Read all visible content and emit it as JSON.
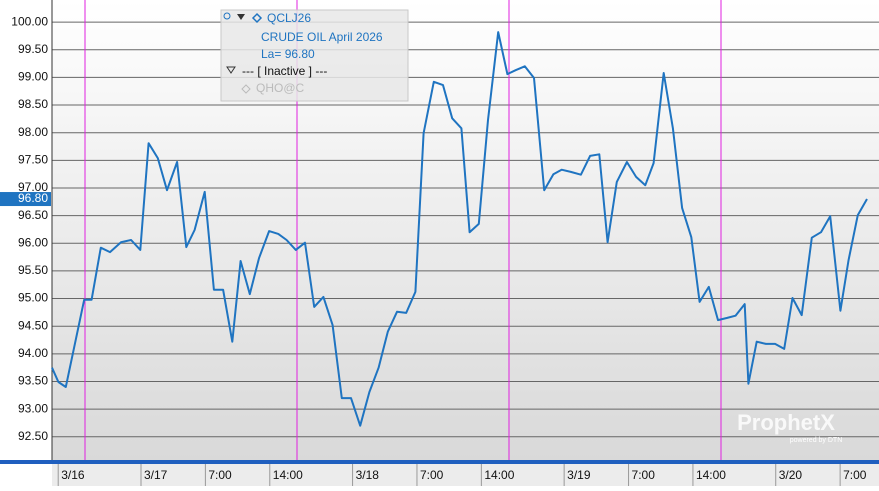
{
  "chart_data": {
    "type": "line",
    "x": [
      0,
      0.7,
      1.5,
      3.5,
      4.3,
      5.3,
      6.3,
      7.5,
      8.6,
      9.6,
      10.5,
      11.5,
      12.5,
      13.6,
      14.6,
      15.5,
      16.6,
      17.6,
      18.6,
      19.6,
      20.5,
      21.5,
      22.5,
      23.6,
      24.6,
      25.5,
      26.5,
      27.5,
      28.5,
      29.5,
      30.5,
      31.5,
      32.5,
      33.5,
      34.5,
      35.5,
      36.5,
      37.5,
      38.5,
      39.5,
      40.4,
      41.5,
      42.5,
      43.5,
      44.5,
      45.4,
      46.4,
      47.4,
      48.5,
      49.5,
      50.4,
      51.4,
      52.4,
      53.5,
      54.5,
      55.4,
      56.4,
      57.5,
      58.5,
      59.5,
      60.4,
      61.4,
      62.5,
      63.5,
      64.5,
      65.4,
      66.5,
      67.5,
      68.5,
      69.5,
      70.4,
      71.4,
      72.4,
      73.4,
      74.3,
      75.3,
      75.7,
      76.6,
      77.6,
      78.6,
      79.6,
      80.5,
      81.5,
      82.6,
      83.6,
      84.6,
      85.7,
      86.6,
      87.6,
      88.6
    ],
    "series": [
      {
        "name": "QCLJ26",
        "color": "#1f74c1",
        "values": [
          93.75,
          93.49,
          93.4,
          94.98,
          94.98,
          95.92,
          95.84,
          96.02,
          96.06,
          95.88,
          97.81,
          97.54,
          96.96,
          97.47,
          95.93,
          96.24,
          96.93,
          95.16,
          95.16,
          94.22,
          95.68,
          95.08,
          95.73,
          96.22,
          96.17,
          96.06,
          95.88,
          96.01,
          94.85,
          95.03,
          94.52,
          93.2,
          93.2,
          92.7,
          93.31,
          93.75,
          94.4,
          94.76,
          94.74,
          95.12,
          97.99,
          98.92,
          98.86,
          98.26,
          98.08,
          96.2,
          96.35,
          98.23,
          99.82,
          99.06,
          99.13,
          99.2,
          98.99,
          96.96,
          97.25,
          97.33,
          97.29,
          97.24,
          97.58,
          97.61,
          96.02,
          97.11,
          97.47,
          97.2,
          97.05,
          97.45,
          99.08,
          98.08,
          96.64,
          96.11,
          94.94,
          95.21,
          94.61,
          94.65,
          94.69,
          94.9,
          93.46,
          94.22,
          94.18,
          94.18,
          94.09,
          95.01,
          94.7,
          96.1,
          96.2,
          96.49,
          94.78,
          95.7,
          96.51,
          96.8
        ]
      }
    ],
    "xlim": [
      0,
      89.9
    ],
    "xticks": [
      {
        "value": 1,
        "label": "3/16"
      },
      {
        "value": 10,
        "label": "3/17"
      },
      {
        "value": 17,
        "label": "7:00"
      },
      {
        "value": 24,
        "label": "14:00"
      },
      {
        "value": 33,
        "label": "3/18"
      },
      {
        "value": 40,
        "label": "7:00"
      },
      {
        "value": 47,
        "label": "14:00"
      },
      {
        "value": 56,
        "label": "3/19"
      },
      {
        "value": 63,
        "label": "7:00"
      },
      {
        "value": 70,
        "label": "14:00"
      },
      {
        "value": 79,
        "label": "3/20"
      },
      {
        "value": 86,
        "label": "7:00"
      }
    ],
    "ylim": [
      92.08,
      100.4
    ],
    "yticks": [
      {
        "value": 92.5,
        "label": "92.50"
      },
      {
        "value": 93,
        "label": "93.00"
      },
      {
        "value": 93.5,
        "label": "93.50"
      },
      {
        "value": 94,
        "label": "94.00"
      },
      {
        "value": 94.5,
        "label": "94.50"
      },
      {
        "value": 95,
        "label": "95.00"
      },
      {
        "value": 95.5,
        "label": "95.50"
      },
      {
        "value": 96,
        "label": "96.00"
      },
      {
        "value": 96.5,
        "label": "96.50"
      },
      {
        "value": 97,
        "label": "97.00"
      },
      {
        "value": 97.5,
        "label": "97.50"
      },
      {
        "value": 98,
        "label": "98.00"
      },
      {
        "value": 98.5,
        "label": "98.50"
      },
      {
        "value": 99,
        "label": "99.00"
      },
      {
        "value": 99.5,
        "label": "99.50"
      },
      {
        "value": 100,
        "label": "100.00"
      }
    ],
    "grid": true,
    "last_price": {
      "value": 96.8,
      "label": "96.80"
    },
    "legend": {
      "description": "CRUDE OIL April 2026",
      "last": "La= 96.80",
      "inactive": "--- [ Inactive ] ---",
      "other_symbol": "QHO@C"
    },
    "watermark": "ProphetX",
    "watermark_sub": "powered by DTN"
  }
}
